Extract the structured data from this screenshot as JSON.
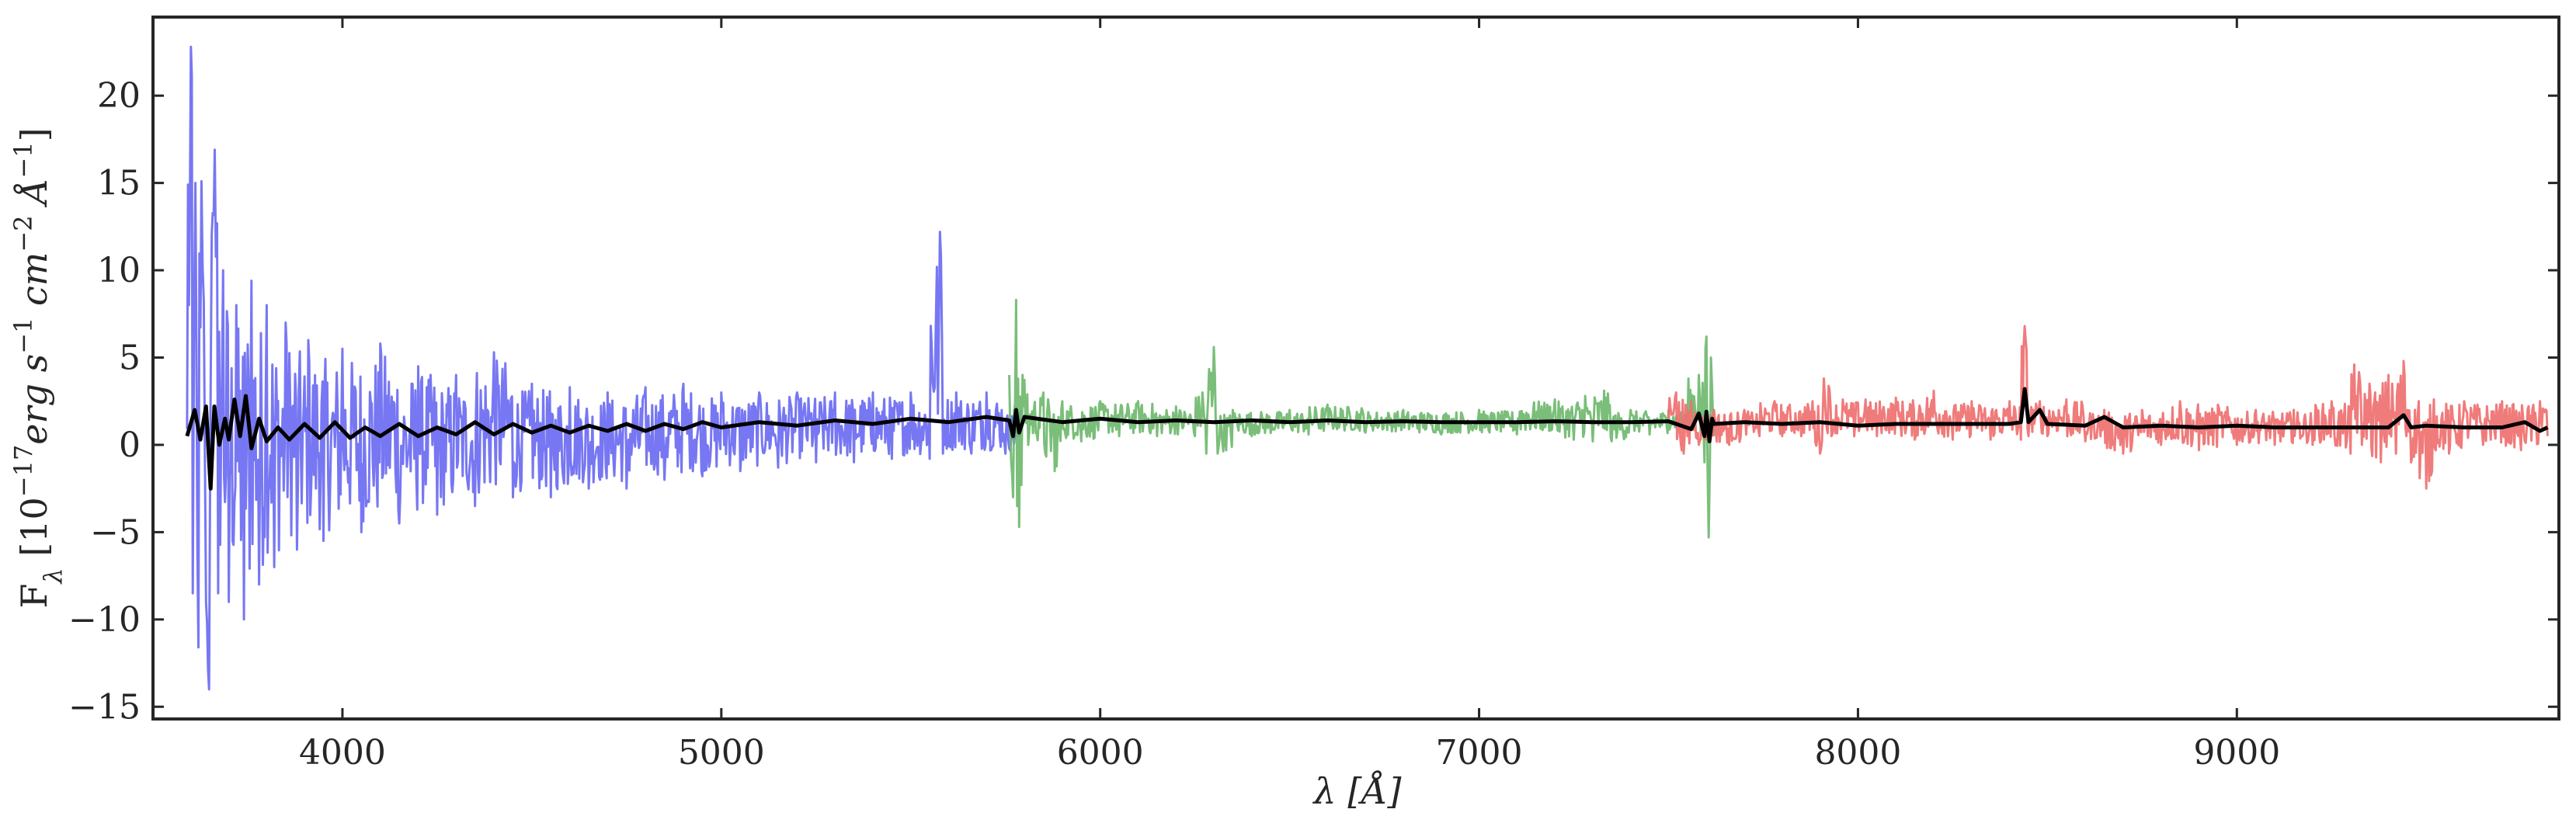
{
  "chart_data": {
    "type": "line",
    "xlabel": "λ [Å]",
    "ylabel": "F",
    "ylabel_sub": "λ",
    "ylabel_unit_open": " [10",
    "ylabel_unit_exp": "−17",
    "ylabel_unit_rest": "erg s",
    "ylabel_s_exp": "−1",
    "ylabel_cm": " cm",
    "ylabel_cm_exp": "−2",
    "ylabel_A": " Å",
    "ylabel_A_exp": "−1",
    "ylabel_close": "]",
    "xlim": [
      3500,
      9850
    ],
    "ylim": [
      -15.7,
      24.5
    ],
    "xticks": [
      4000,
      5000,
      6000,
      7000,
      8000,
      9000
    ],
    "yticks": [
      -15,
      -10,
      -5,
      0,
      5,
      10,
      15,
      20
    ],
    "grid": false,
    "legend": "none",
    "series": [
      {
        "color": "#6b6bf2",
        "x_range": [
          3590,
          5790
        ],
        "points": [
          [
            3590,
            0.9
          ],
          [
            3600,
            22.8
          ],
          [
            3605,
            -8.5
          ],
          [
            3612,
            15.0
          ],
          [
            3620,
            -11.6
          ],
          [
            3628,
            15.1
          ],
          [
            3640,
            -9.0
          ],
          [
            3648,
            -14.0
          ],
          [
            3655,
            12.0
          ],
          [
            3663,
            16.9
          ],
          [
            3672,
            -8.5
          ],
          [
            3685,
            10.0
          ],
          [
            3700,
            -9.0
          ],
          [
            3720,
            8.0
          ],
          [
            3740,
            -10.0
          ],
          [
            3760,
            9.4
          ],
          [
            3780,
            -8.0
          ],
          [
            3800,
            8.0
          ],
          [
            3820,
            -7.0
          ],
          [
            3850,
            7.0
          ],
          [
            3880,
            -6.0
          ],
          [
            3910,
            6.0
          ],
          [
            3950,
            -5.5
          ],
          [
            4000,
            5.5
          ],
          [
            4050,
            -5.0
          ],
          [
            4100,
            5.8
          ],
          [
            4150,
            -4.5
          ],
          [
            4200,
            4.5
          ],
          [
            4250,
            -4.0
          ],
          [
            4300,
            4.0
          ],
          [
            4350,
            -3.5
          ],
          [
            4400,
            5.3
          ],
          [
            4450,
            -3.0
          ],
          [
            4500,
            3.5
          ],
          [
            4550,
            -3.0
          ],
          [
            4600,
            3.3
          ],
          [
            4650,
            -2.5
          ],
          [
            4700,
            3.0
          ],
          [
            4750,
            -2.5
          ],
          [
            4800,
            3.3
          ],
          [
            4850,
            -2.0
          ],
          [
            4900,
            3.5
          ],
          [
            4950,
            -1.8
          ],
          [
            5000,
            3.0
          ],
          [
            5050,
            -1.5
          ],
          [
            5100,
            3.0
          ],
          [
            5150,
            -1.3
          ],
          [
            5200,
            3.0
          ],
          [
            5250,
            -1.0
          ],
          [
            5300,
            3.0
          ],
          [
            5350,
            -1.0
          ],
          [
            5400,
            3.0
          ],
          [
            5450,
            -0.8
          ],
          [
            5500,
            3.0
          ],
          [
            5550,
            -0.8
          ],
          [
            5577,
            12.2
          ],
          [
            5585,
            -0.5
          ],
          [
            5620,
            3.0
          ],
          [
            5660,
            -0.5
          ],
          [
            5700,
            3.0
          ],
          [
            5750,
            -0.5
          ],
          [
            5790,
            2.0
          ]
        ]
      },
      {
        "color": "#6fb96f",
        "x_range": [
          5760,
          7620
        ],
        "points": [
          [
            5760,
            4.0
          ],
          [
            5770,
            -3.0
          ],
          [
            5778,
            8.3
          ],
          [
            5786,
            -4.7
          ],
          [
            5795,
            4.0
          ],
          [
            5810,
            0.0
          ],
          [
            5850,
            3.0
          ],
          [
            5880,
            -1.5
          ],
          [
            5900,
            2.5
          ],
          [
            5950,
            0.2
          ],
          [
            6000,
            2.5
          ],
          [
            6050,
            0.5
          ],
          [
            6100,
            2.5
          ],
          [
            6150,
            0.5
          ],
          [
            6200,
            2.2
          ],
          [
            6250,
            0.5
          ],
          [
            6270,
            3.0
          ],
          [
            6280,
            -0.5
          ],
          [
            6300,
            5.6
          ],
          [
            6310,
            -0.5
          ],
          [
            6350,
            2.0
          ],
          [
            6400,
            0.5
          ],
          [
            6500,
            2.0
          ],
          [
            6550,
            0.6
          ],
          [
            6600,
            2.3
          ],
          [
            6700,
            0.7
          ],
          [
            6800,
            2.0
          ],
          [
            6900,
            0.6
          ],
          [
            7000,
            2.0
          ],
          [
            7100,
            0.6
          ],
          [
            7200,
            2.6
          ],
          [
            7250,
            0.3
          ],
          [
            7280,
            2.8
          ],
          [
            7300,
            0.2
          ],
          [
            7330,
            3.1
          ],
          [
            7350,
            0.2
          ],
          [
            7400,
            2.0
          ],
          [
            7450,
            0.6
          ],
          [
            7500,
            2.0
          ],
          [
            7550,
            0.8
          ],
          [
            7580,
            4.0
          ],
          [
            7595,
            -1.0
          ],
          [
            7600,
            6.2
          ],
          [
            7606,
            -5.3
          ],
          [
            7612,
            5.0
          ],
          [
            7620,
            0.5
          ]
        ]
      },
      {
        "color": "#ef7070",
        "x_range": [
          7500,
          9820
        ],
        "points": [
          [
            7500,
            1.5
          ],
          [
            7520,
            3.0
          ],
          [
            7540,
            -0.5
          ],
          [
            7560,
            2.5
          ],
          [
            7580,
            0.0
          ],
          [
            7620,
            2.0
          ],
          [
            7660,
            0.0
          ],
          [
            7700,
            2.0
          ],
          [
            7740,
            0.5
          ],
          [
            7780,
            2.5
          ],
          [
            7800,
            0.5
          ],
          [
            7820,
            2.3
          ],
          [
            7850,
            0.5
          ],
          [
            7880,
            2.5
          ],
          [
            7900,
            -0.5
          ],
          [
            7910,
            3.8
          ],
          [
            7930,
            0.5
          ],
          [
            7960,
            2.6
          ],
          [
            7990,
            0.5
          ],
          [
            8020,
            2.6
          ],
          [
            8050,
            0.5
          ],
          [
            8100,
            2.7
          ],
          [
            8150,
            0.3
          ],
          [
            8200,
            3.1
          ],
          [
            8250,
            0.3
          ],
          [
            8300,
            2.5
          ],
          [
            8350,
            0.3
          ],
          [
            8400,
            2.5
          ],
          [
            8430,
            0.3
          ],
          [
            8440,
            6.8
          ],
          [
            8450,
            0.5
          ],
          [
            8480,
            2.5
          ],
          [
            8500,
            0.5
          ],
          [
            8550,
            2.6
          ],
          [
            8600,
            0.2
          ],
          [
            8650,
            2.0
          ],
          [
            8700,
            -0.5
          ],
          [
            8750,
            2.0
          ],
          [
            8800,
            0.0
          ],
          [
            8850,
            2.5
          ],
          [
            8900,
            -0.3
          ],
          [
            8950,
            2.3
          ],
          [
            9000,
            0.0
          ],
          [
            9050,
            2.0
          ],
          [
            9100,
            0.0
          ],
          [
            9150,
            2.0
          ],
          [
            9200,
            0.0
          ],
          [
            9250,
            2.5
          ],
          [
            9300,
            -0.5
          ],
          [
            9310,
            4.6
          ],
          [
            9330,
            0.0
          ],
          [
            9350,
            3.5
          ],
          [
            9380,
            -1.0
          ],
          [
            9400,
            4.0
          ],
          [
            9420,
            -0.5
          ],
          [
            9440,
            4.8
          ],
          [
            9460,
            -1.0
          ],
          [
            9480,
            2.5
          ],
          [
            9500,
            -2.5
          ],
          [
            9520,
            2.6
          ],
          [
            9560,
            -0.5
          ],
          [
            9600,
            2.5
          ],
          [
            9650,
            0.0
          ],
          [
            9700,
            2.5
          ],
          [
            9750,
            -0.3
          ],
          [
            9800,
            2.5
          ],
          [
            9820,
            0.5
          ]
        ]
      },
      {
        "color": "#000000",
        "x_range": [
          3590,
          9820
        ],
        "points": [
          [
            3590,
            0.5
          ],
          [
            3610,
            2.0
          ],
          [
            3625,
            0.3
          ],
          [
            3640,
            2.2
          ],
          [
            3652,
            -2.5
          ],
          [
            3662,
            2.2
          ],
          [
            3675,
            0.0
          ],
          [
            3690,
            1.5
          ],
          [
            3700,
            0.3
          ],
          [
            3715,
            2.6
          ],
          [
            3730,
            0.5
          ],
          [
            3745,
            2.8
          ],
          [
            3760,
            -0.2
          ],
          [
            3780,
            1.5
          ],
          [
            3800,
            0.2
          ],
          [
            3830,
            1.0
          ],
          [
            3860,
            0.3
          ],
          [
            3900,
            1.2
          ],
          [
            3940,
            0.4
          ],
          [
            3980,
            1.3
          ],
          [
            4020,
            0.4
          ],
          [
            4060,
            1.0
          ],
          [
            4100,
            0.5
          ],
          [
            4150,
            1.2
          ],
          [
            4200,
            0.5
          ],
          [
            4250,
            1.0
          ],
          [
            4300,
            0.6
          ],
          [
            4350,
            1.3
          ],
          [
            4400,
            0.6
          ],
          [
            4450,
            1.2
          ],
          [
            4500,
            0.7
          ],
          [
            4550,
            1.1
          ],
          [
            4600,
            0.7
          ],
          [
            4650,
            1.1
          ],
          [
            4700,
            0.8
          ],
          [
            4750,
            1.2
          ],
          [
            4800,
            0.8
          ],
          [
            4850,
            1.2
          ],
          [
            4900,
            0.9
          ],
          [
            4950,
            1.3
          ],
          [
            5000,
            1.0
          ],
          [
            5100,
            1.3
          ],
          [
            5200,
            1.1
          ],
          [
            5300,
            1.4
          ],
          [
            5400,
            1.2
          ],
          [
            5500,
            1.5
          ],
          [
            5600,
            1.3
          ],
          [
            5700,
            1.6
          ],
          [
            5760,
            1.4
          ],
          [
            5770,
            0.5
          ],
          [
            5778,
            2.0
          ],
          [
            5786,
            0.7
          ],
          [
            5800,
            1.6
          ],
          [
            5900,
            1.3
          ],
          [
            6000,
            1.5
          ],
          [
            6100,
            1.3
          ],
          [
            6200,
            1.4
          ],
          [
            6300,
            1.3
          ],
          [
            6400,
            1.4
          ],
          [
            6500,
            1.3
          ],
          [
            6600,
            1.4
          ],
          [
            6700,
            1.3
          ],
          [
            6800,
            1.35
          ],
          [
            6900,
            1.3
          ],
          [
            7000,
            1.3
          ],
          [
            7100,
            1.3
          ],
          [
            7200,
            1.35
          ],
          [
            7300,
            1.3
          ],
          [
            7400,
            1.3
          ],
          [
            7500,
            1.35
          ],
          [
            7560,
            0.9
          ],
          [
            7580,
            1.8
          ],
          [
            7595,
            0.5
          ],
          [
            7600,
            1.9
          ],
          [
            7608,
            0.2
          ],
          [
            7615,
            1.5
          ],
          [
            7620,
            1.2
          ],
          [
            7700,
            1.3
          ],
          [
            7800,
            1.2
          ],
          [
            7900,
            1.3
          ],
          [
            8000,
            1.1
          ],
          [
            8100,
            1.2
          ],
          [
            8200,
            1.2
          ],
          [
            8300,
            1.2
          ],
          [
            8400,
            1.2
          ],
          [
            8430,
            1.3
          ],
          [
            8440,
            3.2
          ],
          [
            8450,
            1.3
          ],
          [
            8480,
            2.0
          ],
          [
            8500,
            1.2
          ],
          [
            8600,
            1.1
          ],
          [
            8650,
            1.6
          ],
          [
            8700,
            1.0
          ],
          [
            8800,
            1.1
          ],
          [
            8900,
            1.0
          ],
          [
            9000,
            1.1
          ],
          [
            9100,
            1.0
          ],
          [
            9200,
            1.0
          ],
          [
            9300,
            1.0
          ],
          [
            9400,
            1.0
          ],
          [
            9440,
            1.7
          ],
          [
            9460,
            1.0
          ],
          [
            9500,
            1.1
          ],
          [
            9600,
            1.0
          ],
          [
            9700,
            1.0
          ],
          [
            9760,
            1.3
          ],
          [
            9800,
            0.8
          ],
          [
            9820,
            1.0
          ]
        ]
      }
    ]
  }
}
